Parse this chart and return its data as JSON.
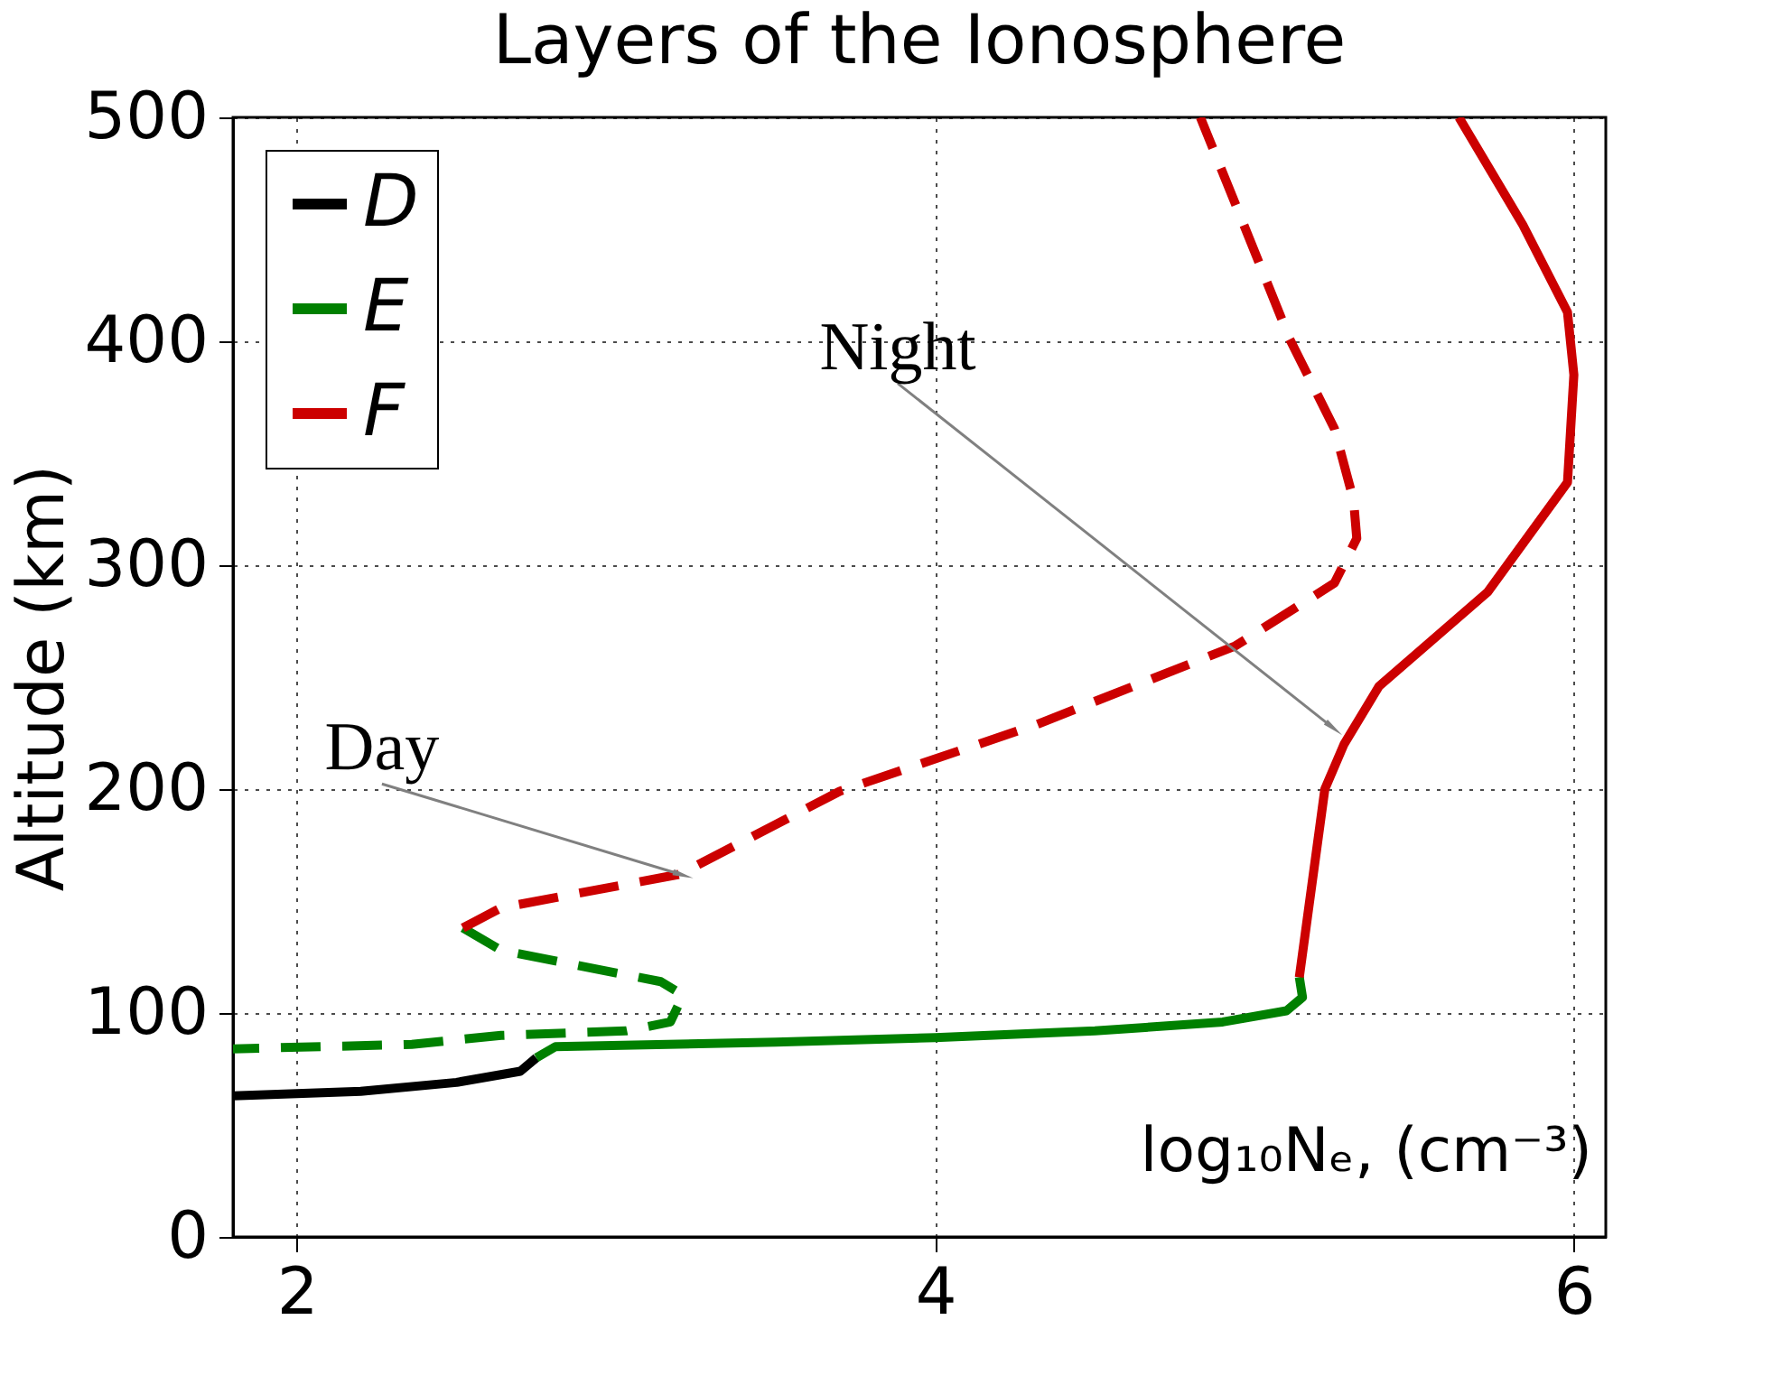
{
  "chart_data": {
    "type": "line",
    "title": "Layers of the Ionosphere",
    "xlabel": "log₁₀Nₑ, (cm⁻³)",
    "ylabel": "Altitude (km)",
    "xlim": [
      1.8,
      6.1
    ],
    "xticks": [
      2,
      4,
      6
    ],
    "ylim": [
      0,
      500
    ],
    "yticks": [
      0,
      100,
      200,
      300,
      400,
      500
    ],
    "grid": true,
    "legend": "top left",
    "series": [
      {
        "name": "D",
        "color": "#000000",
        "line_style": "solid",
        "x": [
          1.8,
          2.2,
          2.5,
          2.7,
          2.75
        ],
        "values": [
          63,
          65,
          69,
          74,
          80
        ]
      },
      {
        "name": "E",
        "color": "#008000",
        "line_style": "solid",
        "x": [
          2.75,
          2.81,
          3.5,
          4.0,
          4.5,
          4.9,
          5.1,
          5.15,
          5.14
        ],
        "values": [
          80,
          85,
          87,
          89,
          92,
          96,
          101,
          107,
          116
        ]
      },
      {
        "color": "#008000",
        "line_style": "dashed",
        "x": [
          2.52,
          2.64,
          3.14,
          3.21,
          3.17,
          3.03,
          2.64,
          2.36,
          1.8
        ],
        "values": [
          138,
          128,
          114,
          108,
          96,
          92,
          90,
          86,
          84
        ]
      },
      {
        "name": "F",
        "color": "#cc0000",
        "line_style": "solid",
        "x": [
          5.14,
          5.22,
          5.28,
          5.39,
          5.73,
          5.98,
          6.0,
          5.98,
          5.84,
          5.64
        ],
        "values": [
          116,
          200,
          220,
          246,
          288,
          337,
          385,
          413,
          452,
          500
        ]
      },
      {
        "color": "#cc0000",
        "line_style": "dashed",
        "x": [
          2.52,
          2.64,
          3.2,
          3.7,
          4.32,
          4.94,
          5.25,
          5.32,
          5.31,
          5.25,
          5.11,
          5.02,
          4.83
        ],
        "values": [
          138,
          147,
          162,
          199,
          229,
          264,
          292,
          312,
          329,
          361,
          401,
          433,
          500
        ]
      }
    ],
    "annotations": [
      {
        "text": "Day",
        "x": 3.2,
        "y": 162
      },
      {
        "text": "Night",
        "x": 5.24,
        "y": 228
      }
    ]
  }
}
